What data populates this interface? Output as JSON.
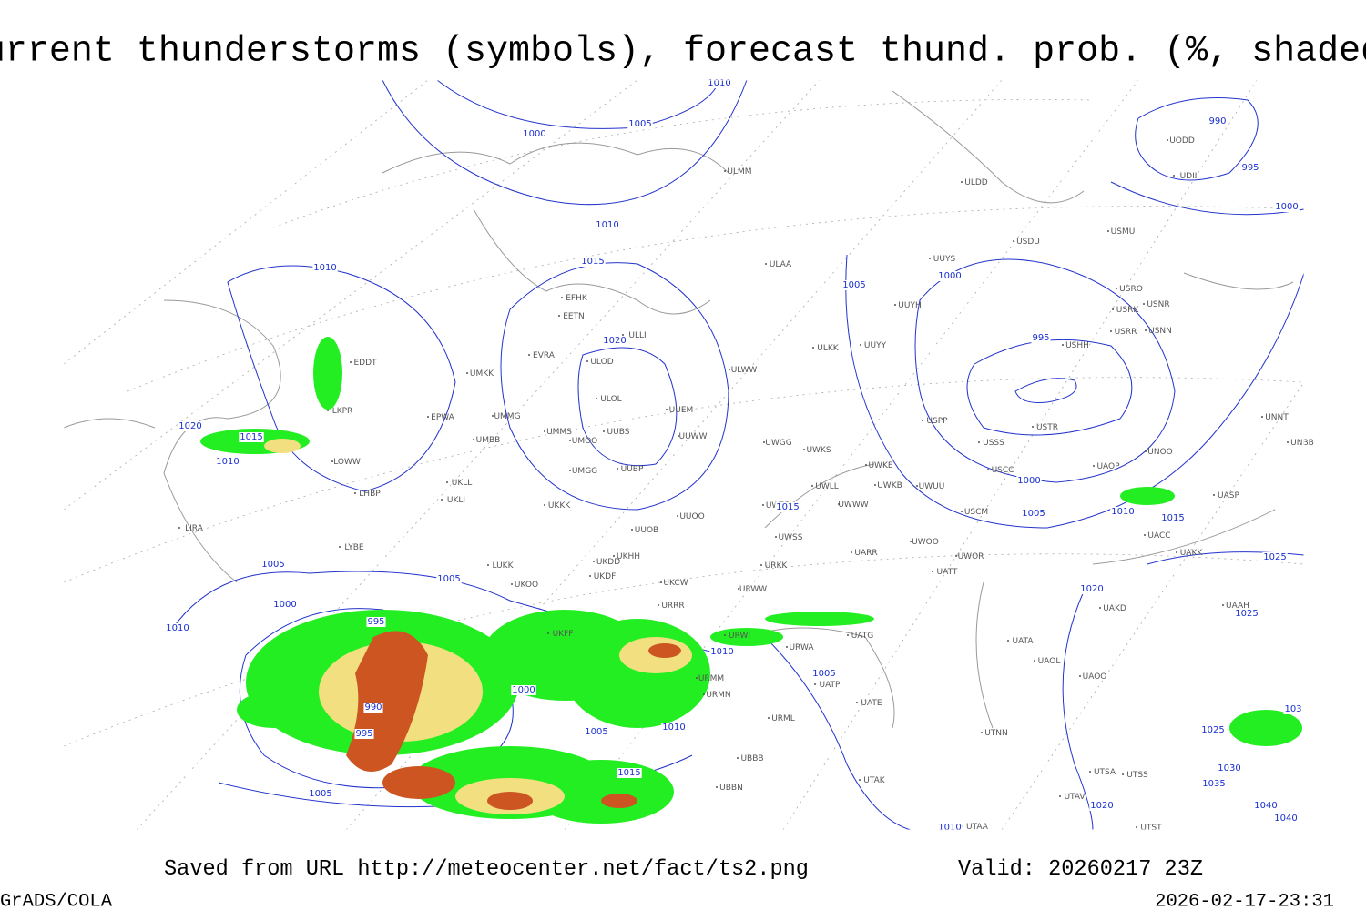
{
  "header": {
    "title": "Current thunderstorms (symbols), forecast thund. prob. (%, shaded)"
  },
  "stations": [
    "ULMM",
    "ULDD",
    "ULAA",
    "USDU",
    "EDDT",
    "LKPR",
    "LOWW",
    "LHBP",
    "LIRA",
    "LYBE",
    "EPWA",
    "UMKK",
    "EVRA",
    "EFHK",
    "EETN",
    "ULLI",
    "ULOD",
    "ULOL",
    "UMMG",
    "UMMS",
    "UMBB",
    "UMOO",
    "UUBS",
    "UMGG",
    "UUBP",
    "UKLL",
    "UKLI",
    "UKKK",
    "UUOO",
    "UUOB",
    "UKHH",
    "UKDD",
    "LUKK",
    "UKOO",
    "UKDF",
    "UKCW",
    "URRR",
    "UKFF",
    "URWI",
    "URWA",
    "URMM",
    "URMN",
    "URML",
    "UBBB",
    "UBBN",
    "UATG",
    "UATP",
    "UATE",
    "UTAK",
    "UTAA",
    "UTNN",
    "UTSA",
    "UTSS",
    "UTAV",
    "UTST",
    "UATA",
    "UAOL",
    "UAOO",
    "UAKD",
    "UAAH",
    "UACC",
    "UAKK",
    "UASP",
    "UAOP",
    "UNOO",
    "UNNT",
    "UNBB",
    "USSS",
    "USTR",
    "USCC",
    "USCM",
    "USPP",
    "UWWW",
    "UWKE",
    "UWKB",
    "UWUU",
    "UWLL",
    "UWKS",
    "UWGG",
    "UUWW",
    "UUEM",
    "ULWW",
    "ULKK",
    "UUYY",
    "UUYH",
    "UUYS",
    "USMU",
    "USRO",
    "USRK",
    "USRR",
    "USNN",
    "USNR",
    "USHH",
    "UWOR",
    "UWOO",
    "UATT",
    "UARR",
    "URWW",
    "UWSS",
    "UWPP",
    "URKK",
    "UODD",
    "UDII"
  ],
  "isobar_labels": [
    "1010",
    "1005",
    "1000",
    "1010",
    "1015",
    "1020",
    "1010",
    "1005",
    "1000",
    "995",
    "990",
    "995",
    "1000",
    "1020",
    "1015",
    "1010",
    "1005",
    "1005",
    "1000",
    "1010",
    "995",
    "990",
    "995",
    "1000",
    "1005",
    "1010",
    "1010",
    "1015",
    "1005",
    "1015",
    "1000",
    "1005",
    "1010",
    "1015",
    "1025",
    "1020",
    "1025",
    "1005",
    "1020",
    "1010",
    "1025",
    "1030",
    "1035",
    "1040",
    "1040",
    "103"
  ],
  "footer": {
    "source": "Saved from URL http://meteocenter.net/fact/ts2.png",
    "valid": "Valid: 20260217 23Z",
    "software": "GrADS/COLA",
    "timestamp": "2026-02-17-23:31"
  }
}
